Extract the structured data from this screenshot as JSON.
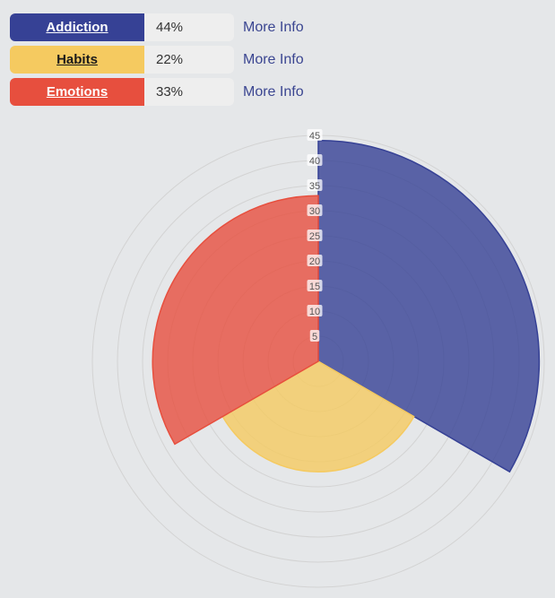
{
  "legend": [
    {
      "label": "Addiction",
      "percent": "44%",
      "link": "More Info",
      "color": "#364195",
      "text_color": "#ffffff"
    },
    {
      "label": "Habits",
      "percent": "22%",
      "link": "More Info",
      "color": "#f5ca60",
      "text_color": "#1a1a1a"
    },
    {
      "label": "Emotions",
      "percent": "33%",
      "link": "More Info",
      "color": "#e74f3e",
      "text_color": "#ffffff"
    }
  ],
  "chart_data": {
    "type": "polarArea",
    "categories": [
      "Addiction",
      "Habits",
      "Emotions"
    ],
    "values": [
      44,
      22,
      33
    ],
    "colors": [
      "#364195",
      "#f5ca60",
      "#e74f3e"
    ],
    "r_max": 45,
    "r_ticks": [
      5,
      10,
      15,
      20,
      25,
      30,
      35,
      40,
      45
    ],
    "grid": true
  }
}
